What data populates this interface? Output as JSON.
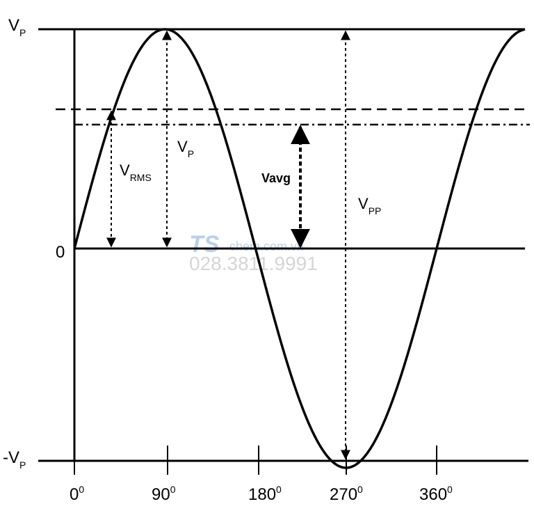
{
  "y_labels": [
    {
      "main": "V",
      "sub": "P"
    },
    {
      "main": "0"
    },
    {
      "main": "-V",
      "sub": "P"
    }
  ],
  "x_labels": [
    {
      "main": "0",
      "sup": "0"
    },
    {
      "main": "90",
      "sup": "0"
    },
    {
      "main": "180",
      "sup": "0"
    },
    {
      "main": "270",
      "sup": "0"
    },
    {
      "main": "360",
      "sup": "0"
    }
  ],
  "annotations": [
    {
      "main": "V",
      "sub": "RMS"
    },
    {
      "main": "V",
      "sub": "P"
    },
    {
      "main": "Vavg"
    },
    {
      "main": "V",
      "sub": "PP"
    }
  ],
  "watermark": {
    "logo": "TS",
    "site": "chem.com.vn",
    "phone": "028.3811.9991"
  }
}
